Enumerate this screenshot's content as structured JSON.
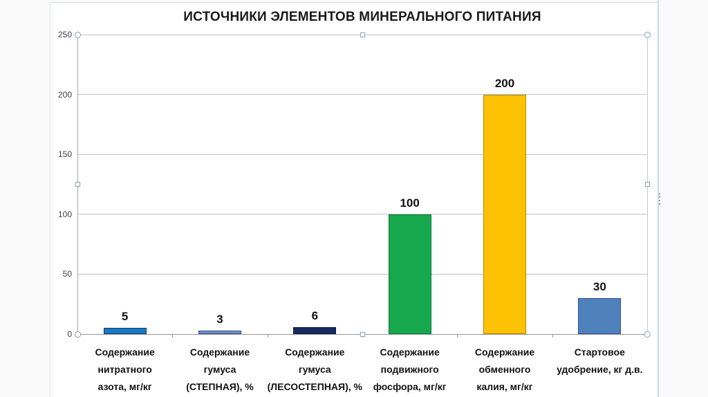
{
  "window": {
    "slide_background": "#ffffff",
    "workspace_background": "#fafafa"
  },
  "chart_data": {
    "type": "bar",
    "title": "ИСТОЧНИКИ ЭЛЕМЕНТОВ МИНЕРАЛЬНОГО ПИТАНИЯ",
    "categories": [
      [
        "Содержание",
        "нитратного",
        "азота, мг/кг"
      ],
      [
        "Содержание",
        "гумуса",
        "(СТЕПНАЯ), %"
      ],
      [
        "Содержание",
        "гумуса",
        "(ЛЕСОСТЕПНАЯ), %"
      ],
      [
        "Содержание",
        "подвижного",
        "фосфора, мг/кг"
      ],
      [
        "Содержание",
        "обменного",
        "калия, мг/кг"
      ],
      [
        "Стартовое",
        "удобрение, кг д.в."
      ]
    ],
    "values": [
      5,
      3,
      6,
      100,
      200,
      30
    ],
    "data_labels": [
      "5",
      "3",
      "6",
      "100",
      "200",
      "30"
    ],
    "bar_colors": [
      "#1879C2",
      "#6F90C8",
      "#162A5E",
      "#18A84D",
      "#FFC103",
      "#4F81BD"
    ],
    "bar_border_colors": [
      "#10386b",
      "#2f4e87",
      "#0a1a44",
      "#0b7a38",
      "#b38600",
      "#2f5688"
    ],
    "xlabel": "",
    "ylabel": "",
    "ylim": [
      0,
      250
    ],
    "yticks": [
      0,
      50,
      100,
      150,
      200,
      250
    ],
    "grid": true,
    "legend": "none",
    "selection": {
      "plot_area_selected": true,
      "handle_shapes": [
        "circle-corners",
        "square-midpoints"
      ]
    }
  }
}
